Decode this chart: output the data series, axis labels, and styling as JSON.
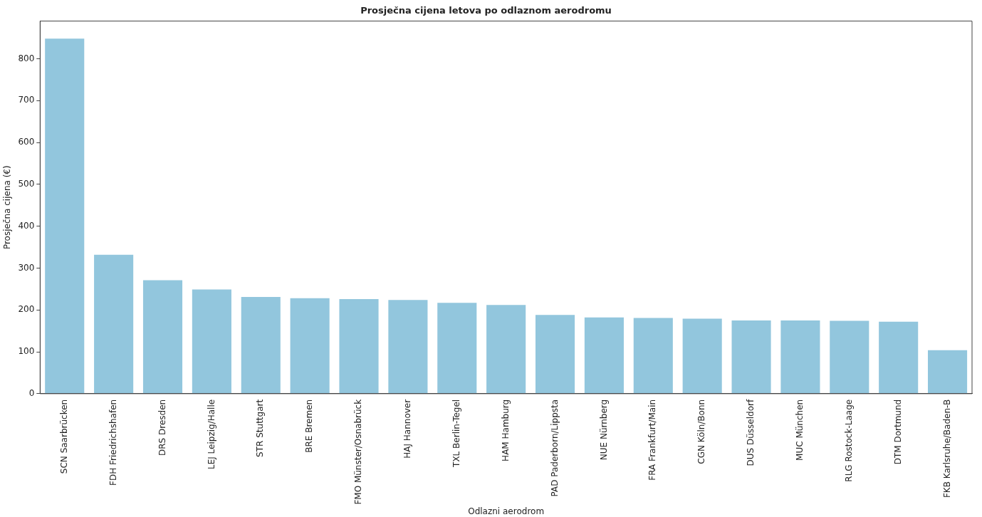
{
  "chart_data": {
    "type": "bar",
    "title": "Prosječna cijena letova po odlaznom aerodromu",
    "xlabel": "Odlazni aerodrom",
    "ylabel": "Prosječna cijena (€)",
    "categories": [
      "SCN Saarbrücken",
      "FDH Friedrichshafen",
      "DRS Dresden",
      "LEJ Leipzig/Halle",
      "STR Stuttgart",
      "BRE Bremen",
      "FMO Münster/Osnabrück",
      "HAJ Hannover",
      "TXL Berlin-Tegel",
      "HAM Hamburg",
      "PAD Paderborn/Lippsta",
      "NUE Nürnberg",
      "FRA Frankfurt/Main",
      "CGN Köln/Bonn",
      "DUS Düsseldorf",
      "MUC München",
      "RLG Rostock-Laage",
      "DTM Dortmund",
      "FKB Karlsruhe/Baden-B"
    ],
    "values": [
      848,
      332,
      271,
      249,
      231,
      228,
      226,
      224,
      217,
      212,
      188,
      182,
      181,
      179,
      175,
      175,
      174,
      172,
      104
    ],
    "color": "#92c6dd",
    "ylim": [
      0,
      890
    ],
    "yticks": [
      0,
      100,
      200,
      300,
      400,
      500,
      600,
      700,
      800
    ],
    "grid": false,
    "legend": false
  }
}
